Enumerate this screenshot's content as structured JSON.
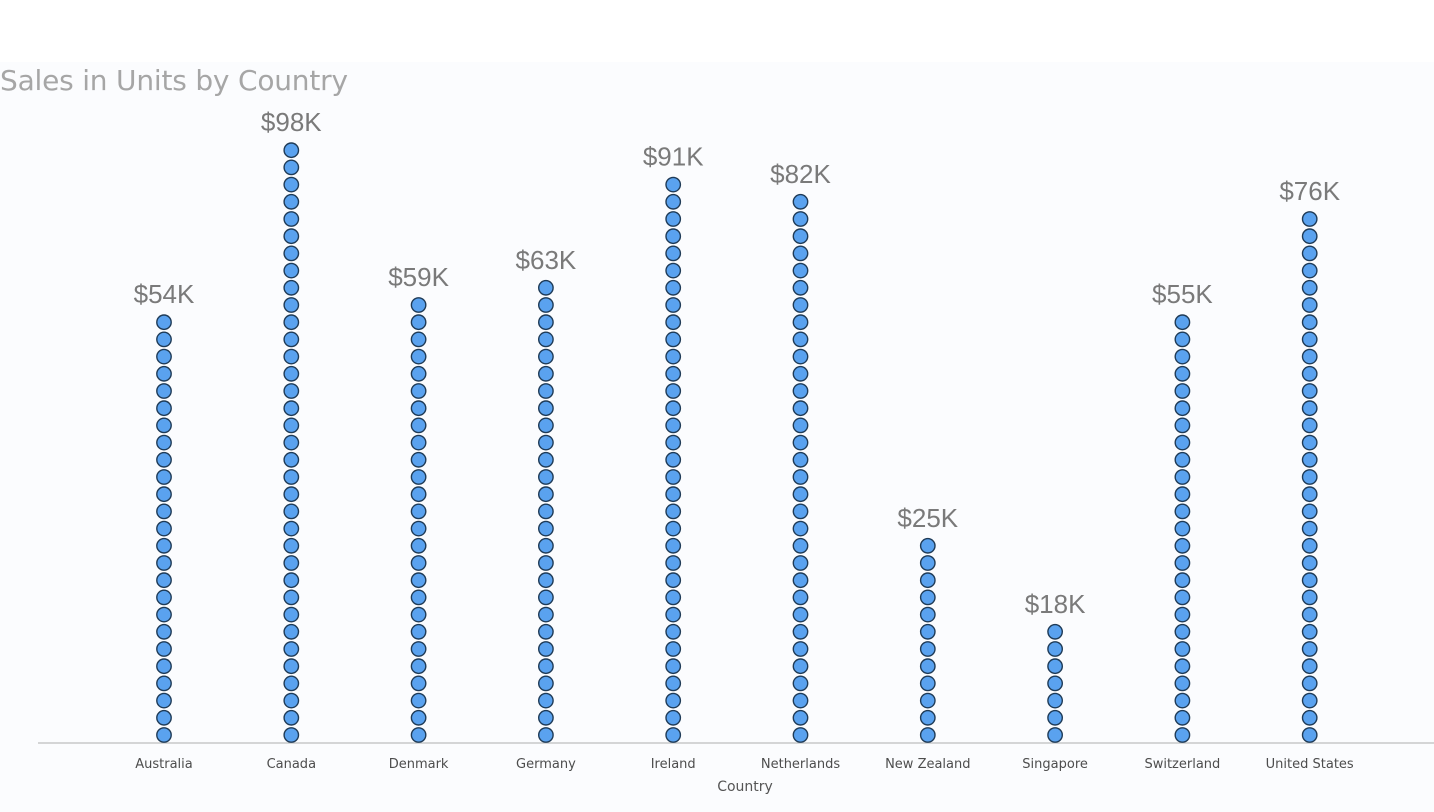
{
  "chart_data": {
    "type": "dot-column",
    "title": "Sales in Units by Country",
    "xlabel": "Country",
    "ylabel": "",
    "categories": [
      "Australia",
      "Canada",
      "Denmark",
      "Germany",
      "Ireland",
      "Netherlands",
      "New Zealand",
      "Singapore",
      "Switzerland",
      "United States"
    ],
    "values": [
      54,
      98,
      59,
      63,
      91,
      82,
      25,
      18,
      55,
      76
    ],
    "labels": [
      "$54K",
      "$98K",
      "$59K",
      "$63K",
      "$91K",
      "$82K",
      "$25K",
      "$18K",
      "$55K",
      "$76K"
    ],
    "dot_counts": [
      25,
      35,
      26,
      27,
      33,
      32,
      12,
      7,
      25,
      31
    ],
    "unit": "thousand",
    "grid": false,
    "legend": "none",
    "colors": {
      "dot_fill": "#5aa2ef",
      "dot_stroke": "#1f3b57",
      "axis": "#c8c8c8"
    }
  }
}
